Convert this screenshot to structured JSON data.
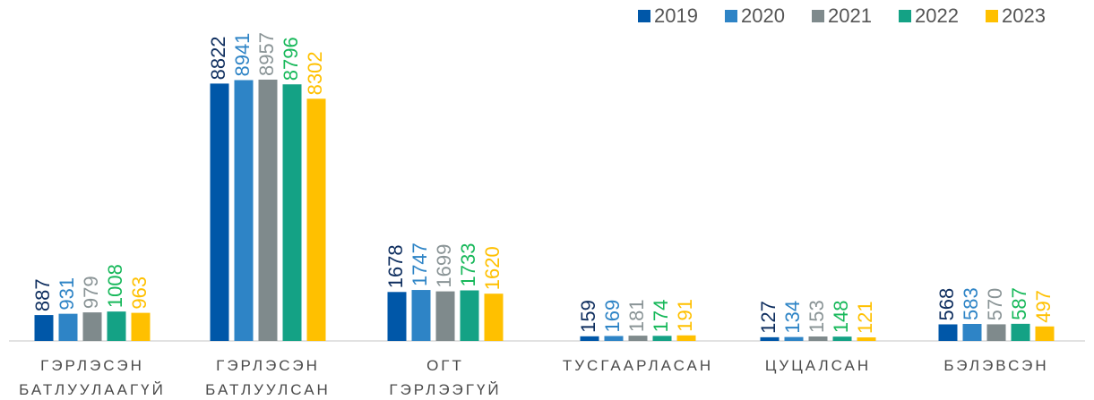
{
  "chart_data": {
    "type": "bar",
    "categories": [
      "ГЭРЛЭСЭН БАТЛУУЛААГҮЙ",
      "ГЭРЛЭСЭН БАТЛУУЛСАН",
      "ОГТ ГЭРЛЭЭГҮЙ",
      "ТУСГААРЛАСАН",
      "ЦУЦАЛСАН",
      "БЭЛЭВСЭН"
    ],
    "series": [
      {
        "name": "2019",
        "color": "#0057a8",
        "label_color": "#0d2d5e",
        "values": [
          887,
          8822,
          1678,
          159,
          127,
          568
        ]
      },
      {
        "name": "2020",
        "color": "#2e84c6",
        "label_color": "#2e84c6",
        "values": [
          931,
          8941,
          1747,
          169,
          134,
          583
        ]
      },
      {
        "name": "2021",
        "color": "#7f8a8c",
        "label_color": "#8a9496",
        "values": [
          979,
          8957,
          1699,
          181,
          153,
          570
        ]
      },
      {
        "name": "2022",
        "color": "#14a285",
        "label_color": "#17b85a",
        "values": [
          1008,
          8796,
          1733,
          174,
          148,
          587
        ]
      },
      {
        "name": "2023",
        "color": "#ffc000",
        "label_color": "#ffc000",
        "values": [
          963,
          8302,
          1620,
          191,
          121,
          497
        ]
      }
    ],
    "legend": "top-right"
  }
}
